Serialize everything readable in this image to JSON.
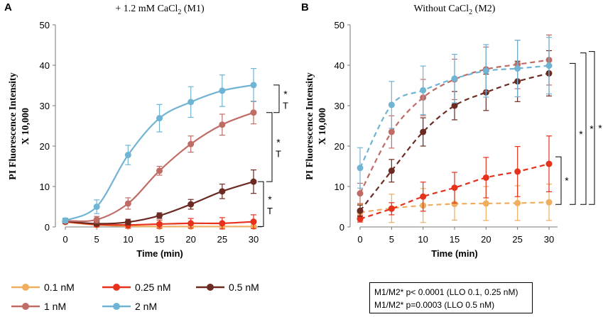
{
  "legend": {
    "entries": [
      {
        "label": "0.1 nM",
        "color": "#EFAE5E"
      },
      {
        "label": "0.25 nM",
        "color": "#E6311D"
      },
      {
        "label": "0.5 nM",
        "color": "#6B2A22"
      },
      {
        "label": "1 nM",
        "color": "#C06C66"
      },
      {
        "label": "2 nM",
        "color": "#70B4D4"
      }
    ]
  },
  "note": {
    "line1": "M1/M2* p< 0.0001 (LLO 0.1, 0.25 nM)",
    "line2": "M1/M2* p=0.0003  (LLO 0.5 nM)"
  },
  "chart_data": [
    {
      "panel": "A",
      "type": "line",
      "line_style": "solid",
      "title": "+ 1.2 mM CaCl2 (M1)",
      "title_main": "+ 1.2 mM CaCl",
      "title_sub": "2",
      "title_tail": " (M1)",
      "xlabel": "Time (min)",
      "ylabel_line1": "PI Fluorescence Intensity",
      "ylabel_line2": "X 10,000",
      "xlim": [
        0,
        30
      ],
      "ylim": [
        0,
        50
      ],
      "x": [
        0,
        5,
        10,
        15,
        20,
        25,
        30
      ],
      "xticks": [
        "0",
        "5",
        "10",
        "15",
        "20",
        "25",
        "30"
      ],
      "yticks": [
        "0",
        "10",
        "20",
        "30",
        "40",
        "50"
      ],
      "series": [
        {
          "name": "0.1 nM",
          "color": "#EFAE5E",
          "values": [
            1.2,
            0.5,
            0.2,
            0.1,
            0.1,
            0.1,
            0.1
          ],
          "errors": [
            0.4,
            0.3,
            0.2,
            0.2,
            0.2,
            0.2,
            0.2
          ]
        },
        {
          "name": "0.25 nM",
          "color": "#E6311D",
          "values": [
            1.3,
            0.6,
            0.5,
            0.7,
            0.9,
            0.9,
            1.3
          ],
          "errors": [
            0.5,
            0.6,
            0.8,
            1.0,
            1.2,
            1.4,
            1.7
          ]
        },
        {
          "name": "0.5 nM",
          "color": "#6B2A22",
          "values": [
            1.4,
            0.8,
            1.2,
            2.8,
            5.6,
            8.8,
            11.2
          ],
          "errors": [
            0.5,
            0.5,
            0.7,
            0.7,
            1.2,
            1.8,
            2.9
          ]
        },
        {
          "name": "1 nM",
          "color": "#C06C66",
          "values": [
            1.5,
            1.8,
            5.8,
            13.9,
            20.5,
            25.3,
            28.3
          ],
          "errors": [
            0.5,
            0.8,
            1.4,
            1.1,
            2.0,
            2.6,
            2.8
          ]
        },
        {
          "name": "2 nM",
          "color": "#70B4D4",
          "values": [
            1.6,
            5.0,
            17.8,
            26.9,
            30.9,
            33.7,
            35.1
          ],
          "errors": [
            0.6,
            1.7,
            2.4,
            3.4,
            3.8,
            3.9,
            4.1
          ]
        }
      ],
      "annotations": [
        {
          "star": "*",
          "tee": "T",
          "from": "2 nM",
          "to": "1 nM"
        },
        {
          "star": "*",
          "tee": "T",
          "from": "1 nM",
          "to": "0.5 nM"
        },
        {
          "star": "*",
          "tee": "T",
          "from": "0.5 nM",
          "to": "0.1 nM"
        }
      ]
    },
    {
      "panel": "B",
      "type": "line",
      "line_style": "dashed",
      "title": "Without CaCl2 (M2)",
      "title_main": "Without CaCl",
      "title_sub": "2",
      "title_tail": " (M2)",
      "xlabel": "Time (min)",
      "ylabel_line1": "PI Fluorescence Intensity",
      "ylabel_line2": "X 10,000",
      "xlim": [
        0,
        30
      ],
      "ylim": [
        0,
        50
      ],
      "x": [
        0,
        5,
        10,
        15,
        20,
        25,
        30
      ],
      "xticks": [
        "0",
        "5",
        "10",
        "15",
        "20",
        "25",
        "30"
      ],
      "yticks": [
        "0",
        "10",
        "20",
        "30",
        "40",
        "50"
      ],
      "series": [
        {
          "name": "0.1 nM",
          "color": "#EFAE5E",
          "values": [
            3.6,
            4.6,
            5.3,
            5.7,
            5.8,
            5.9,
            6.1
          ],
          "errors": [
            2.0,
            3.5,
            4.2,
            4.0,
            4.2,
            4.3,
            4.5
          ]
        },
        {
          "name": "0.25 nM",
          "color": "#E6311D",
          "values": [
            2.0,
            4.5,
            7.5,
            9.7,
            12.2,
            13.7,
            15.6
          ],
          "errors": [
            0.8,
            1.5,
            3.6,
            3.8,
            5.0,
            6.2,
            6.9
          ]
        },
        {
          "name": "0.5 nM",
          "color": "#6B2A22",
          "values": [
            4.0,
            13.9,
            23.5,
            30.0,
            33.3,
            36.0,
            38.0
          ],
          "errors": [
            1.4,
            2.8,
            3.5,
            3.5,
            4.5,
            5.0,
            5.6
          ]
        },
        {
          "name": "1 nM",
          "color": "#C06C66",
          "values": [
            8.3,
            23.5,
            32.0,
            36.5,
            39.0,
            40.2,
            41.3
          ],
          "errors": [
            2.5,
            4.0,
            4.5,
            5.0,
            5.5,
            6.0,
            6.2
          ]
        },
        {
          "name": "2 nM",
          "color": "#70B4D4",
          "values": [
            14.6,
            30.2,
            33.8,
            36.7,
            38.6,
            39.2,
            39.9
          ],
          "errors": [
            5.0,
            5.8,
            6.0,
            6.0,
            6.5,
            7.0,
            7.0
          ]
        }
      ],
      "annotations": [
        {
          "star": "*",
          "from": "0.25 nM",
          "to": "0.1 nM"
        },
        {
          "star": "*",
          "from": "0.5 nM",
          "to": "0.1 nM"
        },
        {
          "star": "*",
          "from": "1 nM",
          "to": "0.1 nM"
        },
        {
          "star": "*",
          "from": "2 nM",
          "to": "0.1 nM"
        }
      ]
    }
  ]
}
